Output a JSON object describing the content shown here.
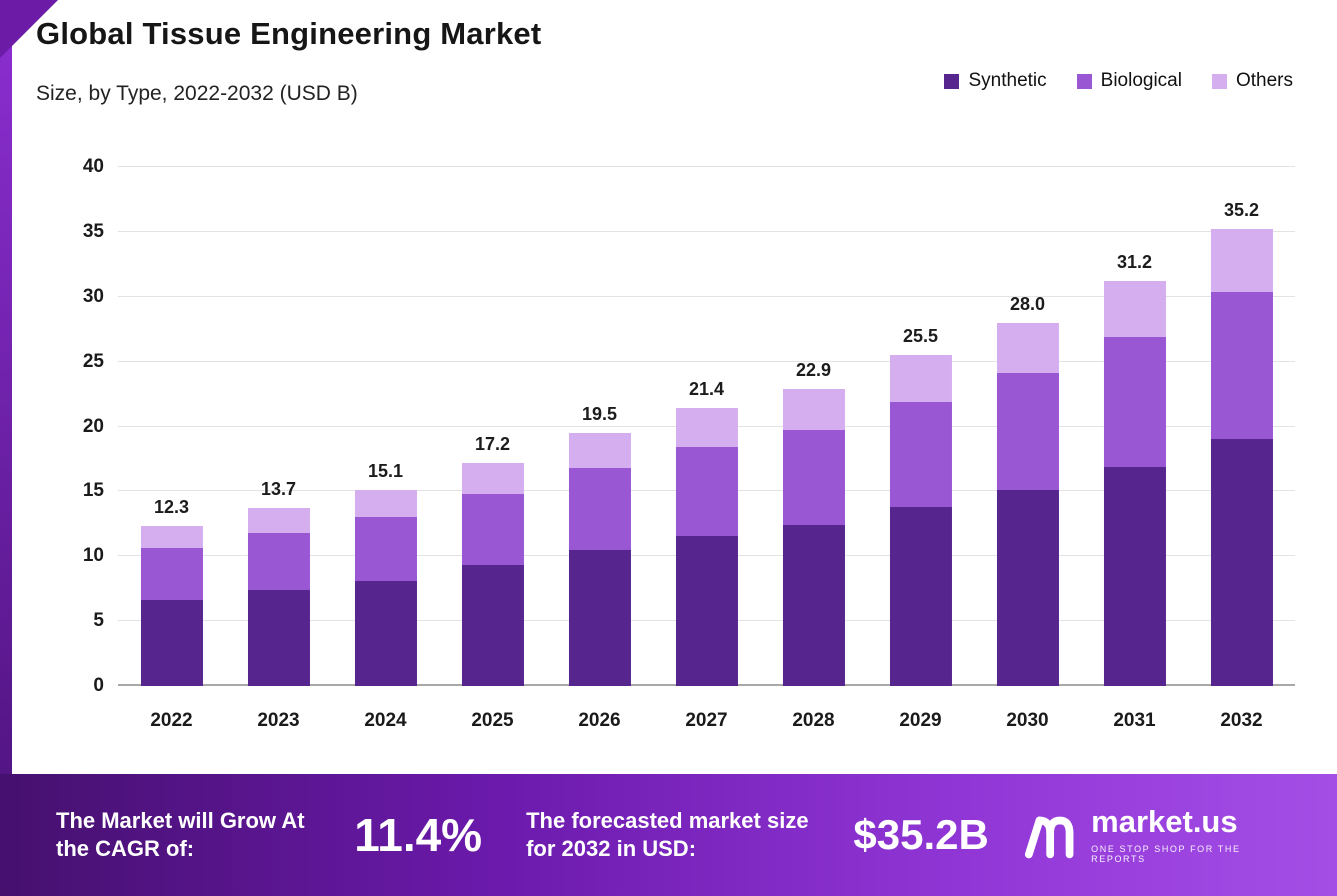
{
  "header": {
    "title": "Global Tissue Engineering Market",
    "subtitle": "Size, by Type, 2022-2032 (USD B)"
  },
  "chart_data": {
    "type": "bar",
    "stacked": true,
    "title": "Global Tissue Engineering Market",
    "subtitle": "Size, by Type, 2022-2032 (USD B)",
    "unit": "USD B",
    "categories": [
      "2022",
      "2023",
      "2024",
      "2025",
      "2026",
      "2027",
      "2028",
      "2029",
      "2030",
      "2031",
      "2032"
    ],
    "series": [
      {
        "name": "Synthetic",
        "color": "#56268e",
        "values": [
          6.6,
          7.4,
          8.1,
          9.3,
          10.5,
          11.6,
          12.4,
          13.8,
          15.1,
          16.9,
          19.0
        ]
      },
      {
        "name": "Biological",
        "color": "#9a57d4",
        "values": [
          4.0,
          4.4,
          4.9,
          5.5,
          6.3,
          6.8,
          7.3,
          8.1,
          9.0,
          10.0,
          11.4
        ]
      },
      {
        "name": "Others",
        "color": "#d5aef0",
        "values": [
          1.7,
          1.9,
          2.1,
          2.4,
          2.7,
          3.0,
          3.2,
          3.6,
          3.9,
          4.3,
          4.8
        ]
      }
    ],
    "totals": [
      "12.3",
      "13.7",
      "15.1",
      "17.2",
      "19.5",
      "21.4",
      "22.9",
      "25.5",
      "28.0",
      "31.2",
      "35.2"
    ],
    "ylim": [
      0,
      40
    ],
    "yticks": [
      0,
      5,
      10,
      15,
      20,
      25,
      30,
      35,
      40
    ],
    "grid": true,
    "legend_position": "top-right"
  },
  "footer": {
    "cagr_label": "The Market will Grow At the CAGR of:",
    "cagr_value": "11.4%",
    "forecast_label": "The forecasted market size for 2032 in USD:",
    "forecast_value": "$35.2B",
    "brand": "market.us",
    "brand_tagline": "ONE STOP SHOP FOR THE REPORTS"
  }
}
